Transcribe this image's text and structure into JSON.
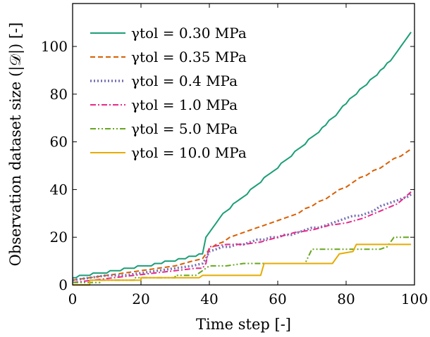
{
  "chart_data": {
    "type": "line",
    "xlabel": "Time step [-]",
    "ylabel": "Observation dataset size (|𝒟|) [-]",
    "xlim": [
      0,
      100
    ],
    "ylim": [
      0,
      118
    ],
    "xticks": [
      0,
      20,
      40,
      60,
      80,
      100
    ],
    "yticks": [
      0,
      20,
      40,
      60,
      80,
      100
    ],
    "grid": false,
    "legend_position": "top-left",
    "series": [
      {
        "name": "γtol = 0.30 MPa",
        "color": "#1b9e77",
        "dash": "solid",
        "x": [
          0,
          1,
          2,
          3,
          4,
          5,
          6,
          7,
          8,
          9,
          10,
          11,
          12,
          13,
          14,
          15,
          16,
          17,
          18,
          19,
          20,
          21,
          22,
          23,
          24,
          25,
          26,
          27,
          28,
          29,
          30,
          31,
          32,
          33,
          34,
          35,
          36,
          37,
          38,
          39,
          40,
          41,
          42,
          43,
          44,
          45,
          46,
          47,
          48,
          49,
          50,
          51,
          52,
          53,
          54,
          55,
          56,
          57,
          58,
          59,
          60,
          61,
          62,
          63,
          64,
          65,
          66,
          67,
          68,
          69,
          70,
          71,
          72,
          73,
          74,
          75,
          76,
          77,
          78,
          79,
          80,
          81,
          82,
          83,
          84,
          85,
          86,
          87,
          88,
          89,
          90,
          91,
          92,
          93,
          94,
          95,
          96,
          97,
          98,
          99
        ],
        "y": [
          3,
          3,
          4,
          4,
          4,
          4,
          5,
          5,
          5,
          5,
          5,
          6,
          6,
          6,
          6,
          7,
          7,
          7,
          7,
          8,
          8,
          8,
          8,
          8,
          9,
          9,
          9,
          10,
          10,
          10,
          10,
          11,
          11,
          11,
          12,
          12,
          12,
          13,
          13,
          20,
          22,
          24,
          26,
          28,
          30,
          31,
          32,
          34,
          35,
          36,
          37,
          38,
          40,
          41,
          42,
          43,
          45,
          46,
          47,
          48,
          49,
          51,
          52,
          53,
          54,
          56,
          57,
          58,
          59,
          61,
          62,
          63,
          64,
          66,
          67,
          69,
          70,
          71,
          73,
          75,
          76,
          78,
          79,
          80,
          82,
          83,
          84,
          86,
          87,
          88,
          90,
          91,
          93,
          94,
          96,
          98,
          100,
          102,
          104,
          106
        ]
      },
      {
        "name": "γtol = 0.35 MPa",
        "color": "#d95f02",
        "dash": "dashed",
        "x": [
          0,
          5,
          10,
          15,
          20,
          25,
          30,
          35,
          38,
          39,
          40,
          42,
          44,
          46,
          48,
          50,
          52,
          54,
          56,
          58,
          60,
          62,
          64,
          66,
          68,
          70,
          72,
          74,
          76,
          78,
          80,
          82,
          84,
          86,
          88,
          90,
          92,
          94,
          96,
          98,
          99
        ],
        "y": [
          2,
          3,
          4,
          5,
          6,
          7,
          8,
          10,
          11,
          13,
          15,
          17,
          18,
          20,
          21,
          22,
          23,
          24,
          25,
          26,
          27,
          28,
          29,
          30,
          32,
          33,
          35,
          36,
          38,
          40,
          41,
          43,
          45,
          46,
          48,
          49,
          51,
          53,
          54,
          56,
          57
        ]
      },
      {
        "name": "γtol = 0.4 MPa",
        "color": "#7570b3",
        "dash": "dotted",
        "x": [
          0,
          5,
          10,
          15,
          20,
          25,
          30,
          35,
          38,
          39,
          40,
          42,
          44,
          46,
          48,
          50,
          52,
          54,
          56,
          58,
          60,
          62,
          64,
          66,
          68,
          70,
          72,
          74,
          76,
          78,
          80,
          82,
          84,
          86,
          88,
          90,
          92,
          94,
          96,
          98,
          99
        ],
        "y": [
          2,
          3,
          4,
          4,
          5,
          6,
          7,
          8,
          9,
          11,
          14,
          15,
          16,
          16,
          17,
          17,
          18,
          19,
          19,
          20,
          20,
          21,
          21,
          22,
          23,
          24,
          24,
          25,
          26,
          27,
          28,
          29,
          29,
          30,
          31,
          33,
          34,
          35,
          36,
          37,
          38
        ]
      },
      {
        "name": "γtol = 1.0 MPa",
        "color": "#e7298a",
        "dash": "dashdot",
        "x": [
          0,
          6,
          12,
          18,
          24,
          30,
          36,
          38,
          39,
          40,
          45,
          50,
          55,
          60,
          65,
          70,
          75,
          80,
          85,
          90,
          95,
          99
        ],
        "y": [
          1,
          2,
          3,
          4,
          5,
          6,
          7,
          7,
          9,
          16,
          17,
          17,
          18,
          20,
          22,
          23,
          25,
          26,
          28,
          31,
          34,
          39
        ]
      },
      {
        "name": "γtol = 5.0 MPa",
        "color": "#66a61e",
        "dash": "dashdotdot",
        "x": [
          0,
          8,
          8,
          18,
          18,
          30,
          30,
          36,
          38,
          40,
          45,
          50,
          55,
          60,
          65,
          68,
          70,
          73,
          80,
          90,
          92,
          94,
          96,
          99
        ],
        "y": [
          1,
          1,
          2,
          2,
          3,
          3,
          4,
          4,
          6,
          8,
          8,
          9,
          9,
          9,
          9,
          9,
          15,
          15,
          15,
          15,
          16,
          20,
          20,
          20
        ]
      },
      {
        "name": "γtol = 10.0 MPa",
        "color": "#e6ab02",
        "dash": "solid",
        "x": [
          0,
          5,
          5,
          20,
          20,
          37,
          38,
          55,
          56,
          76,
          78,
          82,
          83,
          99
        ],
        "y": [
          0,
          0,
          2,
          2,
          3,
          3,
          4,
          4,
          9,
          9,
          13,
          14,
          17,
          17
        ]
      }
    ]
  }
}
